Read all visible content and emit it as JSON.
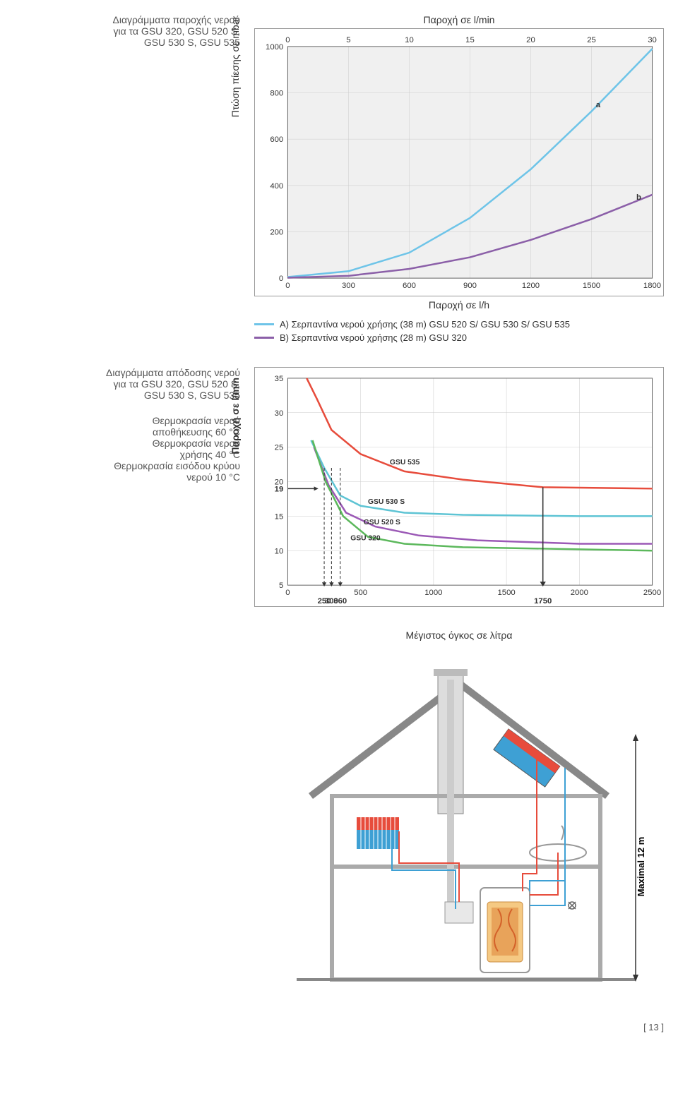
{
  "section1": {
    "title_lines": [
      "Διαγράμματα παροχής νερού",
      "για τα GSU 320, GSU 520 S,",
      "GSU 530 S, GSU 535"
    ],
    "chart": {
      "type": "line",
      "title_top": "Παροχή σε l/min",
      "y_label": "Πτώση πίεσης σε mbar",
      "x_label": "Παροχή σε l/h",
      "background_color": "#f0f0f0",
      "grid_color": "#cccccc",
      "xlim": [
        0,
        1800
      ],
      "ylim": [
        0,
        1000
      ],
      "x_ticks": [
        0,
        300,
        600,
        900,
        1200,
        1500,
        1800
      ],
      "y_ticks": [
        0,
        200,
        400,
        600,
        800,
        1000
      ],
      "top_ticks": [
        0,
        5,
        10,
        15,
        20,
        25,
        30
      ],
      "series_a": {
        "color": "#6ec4e8",
        "label": "a",
        "x": [
          0,
          300,
          600,
          900,
          1200,
          1500,
          1800
        ],
        "y": [
          5,
          30,
          110,
          260,
          470,
          720,
          990
        ]
      },
      "series_b": {
        "color": "#8b5fa8",
        "label": "b",
        "x": [
          0,
          300,
          600,
          900,
          1200,
          1500,
          1800
        ],
        "y": [
          2,
          10,
          40,
          90,
          165,
          255,
          360
        ]
      },
      "legend_a": "Α) Σερπαντίνα νερού χρήσης (38 m) GSU 520 S/ GSU 530 S/ GSU 535",
      "legend_b": "Β) Σερπαντίνα νερού χρήσης (28 m) GSU 320"
    }
  },
  "section2": {
    "title_lines": [
      "Διαγράμματα απόδοσης νερού",
      "για τα GSU 320, GSU 520 S,",
      "GSU 530 S, GSU 535"
    ],
    "conditions": [
      "Θερμοκρασία νερού",
      "αποθήκευσης 60 °C",
      "Θερμοκρασία νερού",
      "χρήσης 40 °C",
      "Θερμοκρασία εισόδου κρύου",
      "νερού 10 °C"
    ],
    "chart": {
      "type": "line",
      "y_label": "Παροχή σε l/min",
      "x_label": "Μέγιστος όγκος σε λίτρα",
      "background_color": "#ffffff",
      "grid_color": "#cccccc",
      "xlim": [
        0,
        2500
      ],
      "ylim": [
        5,
        35
      ],
      "x_ticks": [
        0,
        500,
        1000,
        1500,
        2000,
        2500
      ],
      "y_ticks": [
        5,
        10,
        15,
        20,
        25,
        30,
        35
      ],
      "y_extra_tick": 19,
      "x_markers": [
        250,
        300,
        360,
        1750
      ],
      "series": [
        {
          "name": "GSU 535",
          "color": "#e74c3c",
          "x": [
            130,
            200,
            300,
            500,
            800,
            1200,
            1750,
            2500
          ],
          "y": [
            35,
            32,
            27.5,
            24,
            21.5,
            20.3,
            19.2,
            19
          ]
        },
        {
          "name": "GSU 530 S",
          "color": "#5ec4d4",
          "x": [
            160,
            250,
            360,
            500,
            800,
            1200,
            2000,
            2500
          ],
          "y": [
            26,
            22,
            18,
            16.5,
            15.5,
            15.2,
            15,
            15
          ]
        },
        {
          "name": "GSU 520 S",
          "color": "#9b59b6",
          "x": [
            180,
            280,
            400,
            600,
            900,
            1300,
            2000,
            2500
          ],
          "y": [
            25,
            19.5,
            15.5,
            13.5,
            12.2,
            11.5,
            11,
            11
          ]
        },
        {
          "name": "GSU 320",
          "color": "#5cb85c",
          "x": [
            170,
            260,
            380,
            550,
            800,
            1200,
            2000,
            2500
          ],
          "y": [
            26,
            20,
            15,
            12,
            11,
            10.5,
            10.2,
            10
          ]
        }
      ]
    }
  },
  "house": {
    "max_height_label": "Maximal 12 m",
    "roof_color": "#888888",
    "wall_color": "#aaaaaa",
    "radiator_color_hot": "#e74c3c",
    "radiator_color_cold": "#3ea0d4",
    "pipe_red": "#e74c3c",
    "pipe_blue": "#3ea0d4",
    "tank_color": "#f5c983",
    "tank_inner": "#e8a35a"
  },
  "page_number": "[ 13 ]"
}
